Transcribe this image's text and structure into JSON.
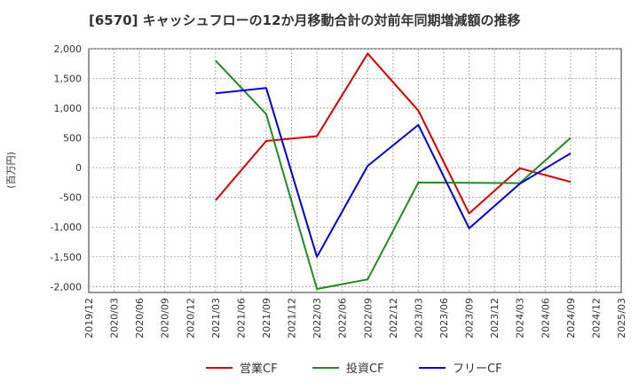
{
  "chart_data": {
    "type": "line",
    "title": "[6570]  キャッシュフローの12か月移動合計の対前年同期増減額の推移",
    "ylabel": "(百万円)",
    "xlabel": "",
    "ylim": [
      -2100,
      2000
    ],
    "yticks": [
      2000,
      1500,
      1000,
      500,
      0,
      -500,
      -1000,
      -1500,
      -2000
    ],
    "ytick_labels": [
      "2,000",
      "1,500",
      "1,000",
      "500",
      "0",
      "-500",
      "-1,000",
      "-1,500",
      "-2,000"
    ],
    "categories": [
      "2019/12",
      "2020/03",
      "2020/06",
      "2020/09",
      "2020/12",
      "2021/03",
      "2021/06",
      "2021/09",
      "2021/12",
      "2022/03",
      "2022/06",
      "2022/09",
      "2022/12",
      "2023/03",
      "2023/06",
      "2023/09",
      "2023/12",
      "2024/03",
      "2024/06",
      "2024/09",
      "2024/12",
      "2025/03"
    ],
    "series": [
      {
        "name": "営業CF",
        "color": "#dd0000",
        "values": [
          null,
          null,
          null,
          null,
          null,
          -550,
          null,
          450,
          null,
          530,
          null,
          1920,
          null,
          960,
          null,
          -770,
          null,
          -10,
          null,
          -240,
          null,
          null
        ]
      },
      {
        "name": "投資CF",
        "color": "#228B22",
        "values": [
          null,
          null,
          null,
          null,
          null,
          1800,
          null,
          900,
          null,
          -2040,
          null,
          -1880,
          null,
          -250,
          null,
          -255,
          null,
          -260,
          null,
          500,
          null,
          null
        ]
      },
      {
        "name": "フリーCF",
        "color": "#0000dd",
        "values": [
          null,
          null,
          null,
          null,
          null,
          1250,
          null,
          1340,
          null,
          -1500,
          null,
          30,
          null,
          720,
          null,
          -1020,
          null,
          -270,
          null,
          240,
          null,
          null
        ]
      }
    ],
    "legend_position": "bottom"
  }
}
